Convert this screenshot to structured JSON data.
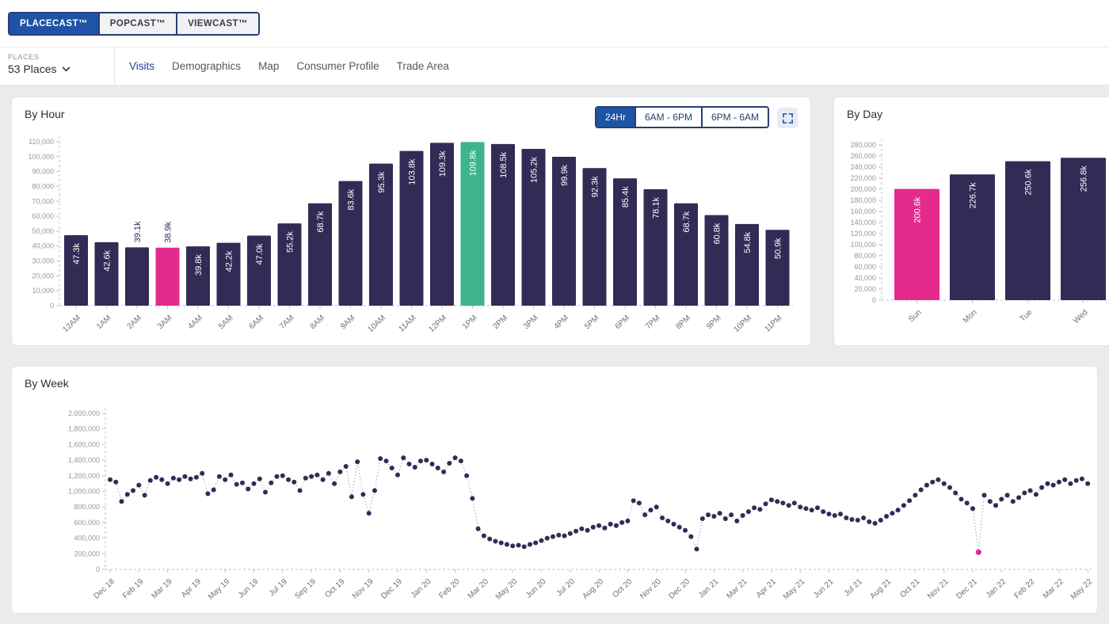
{
  "topbar": {
    "tabs": [
      {
        "label": "PLACECAST™",
        "active": true
      },
      {
        "label": "POPCAST™",
        "active": false
      },
      {
        "label": "VIEWCAST™",
        "active": false
      }
    ]
  },
  "subheader": {
    "places_label": "PLACES",
    "places_value": "53 Places",
    "nav": [
      {
        "label": "Visits",
        "active": true
      },
      {
        "label": "Demographics",
        "active": false
      },
      {
        "label": "Map",
        "active": false
      },
      {
        "label": "Consumer Profile",
        "active": false
      },
      {
        "label": "Trade Area",
        "active": false
      }
    ]
  },
  "colors": {
    "bar": "#312b55",
    "pink": "#e42a8d",
    "green": "#3db489",
    "active_blue": "#1e53a6",
    "border_navy": "#2b3d71",
    "axis": "#c2c2c8"
  },
  "chart_data": [
    {
      "id": "by_hour",
      "type": "bar",
      "title": "By Hour",
      "toggles": [
        "24Hr",
        "6AM - 6PM",
        "6PM - 6AM"
      ],
      "active_toggle": "24Hr",
      "categories": [
        "12AM",
        "1AM",
        "2AM",
        "3AM",
        "4AM",
        "5AM",
        "6AM",
        "7AM",
        "8AM",
        "9AM",
        "10AM",
        "11AM",
        "12PM",
        "1PM",
        "2PM",
        "3PM",
        "4PM",
        "5PM",
        "6PM",
        "7PM",
        "8PM",
        "9PM",
        "10PM",
        "11PM"
      ],
      "values": [
        47300,
        42600,
        39100,
        38900,
        39800,
        42200,
        47000,
        55200,
        68700,
        83600,
        95300,
        103800,
        109300,
        109800,
        108500,
        105200,
        99900,
        92300,
        85400,
        78100,
        68700,
        60800,
        54800,
        50900
      ],
      "labels": [
        "47.3k",
        "42.6k",
        "39.1k",
        "38.9k",
        "39.8k",
        "42.2k",
        "47.0k",
        "55.2k",
        "68.7k",
        "83.6k",
        "95.3k",
        "103.8k",
        "109.3k",
        "109.8k",
        "108.5k",
        "105.2k",
        "99.9k",
        "92.3k",
        "85.4k",
        "78.1k",
        "68.7k",
        "60.8k",
        "54.8k",
        "50.9k"
      ],
      "label_above_indices": [
        2,
        3
      ],
      "pink_index": 3,
      "green_index": 13,
      "ylim": [
        0,
        110000
      ],
      "ystep": 10000
    },
    {
      "id": "by_day",
      "type": "bar",
      "title": "By Day",
      "categories": [
        "Sun",
        "Mon",
        "Tue",
        "Wed"
      ],
      "values": [
        200600,
        226700,
        250600,
        256800
      ],
      "labels": [
        "200.6k",
        "226.7k",
        "250.6k",
        "256.8k"
      ],
      "label_above_indices": [],
      "pink_index": 0,
      "ylim": [
        0,
        280000
      ],
      "ystep": 20000
    },
    {
      "id": "by_week",
      "type": "scatter",
      "title": "By Week",
      "x_tick_labels": [
        "Dec 18",
        "Feb 19",
        "Mar 19",
        "Apr 19",
        "May 19",
        "Jun 19",
        "Jul 19",
        "Sep 19",
        "Oct 19",
        "Nov 19",
        "Dec 19",
        "Jan 20",
        "Feb 20",
        "Mar 20",
        "May 20",
        "Jun 20",
        "Jul 20",
        "Aug 20",
        "Oct 20",
        "Nov 20",
        "Dec 20",
        "Jan 21",
        "Mar 21",
        "Apr 21",
        "May 21",
        "Jun 21",
        "Jul 21",
        "Aug 21",
        "Oct 21",
        "Nov 21",
        "Dec 21",
        "Jan 22",
        "Feb 22",
        "Mar 22",
        "May 22"
      ],
      "x_tick_every": 5,
      "values": [
        1150000,
        1120000,
        870000,
        960000,
        1010000,
        1080000,
        950000,
        1140000,
        1180000,
        1150000,
        1100000,
        1170000,
        1150000,
        1190000,
        1160000,
        1180000,
        1230000,
        970000,
        1020000,
        1190000,
        1150000,
        1210000,
        1090000,
        1110000,
        1030000,
        1100000,
        1160000,
        990000,
        1110000,
        1190000,
        1200000,
        1150000,
        1120000,
        1010000,
        1170000,
        1190000,
        1210000,
        1150000,
        1230000,
        1100000,
        1250000,
        1320000,
        930000,
        1380000,
        960000,
        720000,
        1010000,
        1420000,
        1390000,
        1300000,
        1210000,
        1430000,
        1350000,
        1310000,
        1390000,
        1400000,
        1350000,
        1300000,
        1250000,
        1360000,
        1430000,
        1390000,
        1200000,
        910000,
        520000,
        430000,
        390000,
        360000,
        340000,
        320000,
        300000,
        310000,
        290000,
        320000,
        340000,
        370000,
        400000,
        420000,
        440000,
        430000,
        460000,
        490000,
        520000,
        500000,
        540000,
        560000,
        530000,
        580000,
        560000,
        600000,
        620000,
        880000,
        850000,
        700000,
        760000,
        800000,
        660000,
        620000,
        580000,
        540000,
        500000,
        420000,
        260000,
        650000,
        700000,
        680000,
        720000,
        650000,
        700000,
        620000,
        690000,
        740000,
        790000,
        770000,
        840000,
        890000,
        870000,
        850000,
        820000,
        850000,
        800000,
        780000,
        760000,
        790000,
        740000,
        710000,
        690000,
        710000,
        660000,
        640000,
        630000,
        660000,
        610000,
        590000,
        630000,
        680000,
        720000,
        760000,
        820000,
        880000,
        950000,
        1020000,
        1080000,
        1120000,
        1150000,
        1100000,
        1050000,
        980000,
        900000,
        850000,
        780000,
        220000,
        950000,
        870000,
        820000,
        900000,
        950000,
        870000,
        920000,
        980000,
        1010000,
        960000,
        1050000,
        1100000,
        1080000,
        1120000,
        1150000,
        1100000,
        1140000,
        1160000,
        1100000
      ],
      "pink_index": 151,
      "ylim": [
        0,
        2000000
      ],
      "ystep": 200000
    }
  ]
}
